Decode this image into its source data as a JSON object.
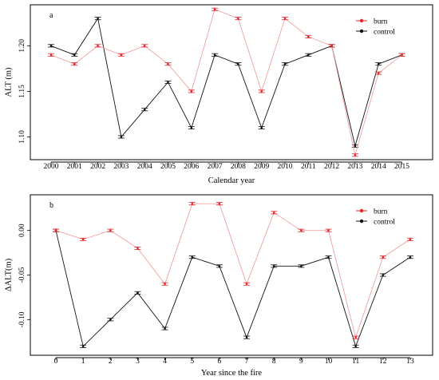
{
  "chart_data": [
    {
      "panel": "a",
      "type": "line",
      "xlabel": "Calendar year",
      "ylabel": "ALT (m)",
      "x": [
        "2000",
        "2001",
        "2002",
        "2003",
        "2004",
        "2005",
        "2006",
        "2007",
        "2008",
        "2009",
        "2010",
        "2011",
        "2012",
        "2013",
        "2014",
        "2015"
      ],
      "ylim": [
        1.075,
        1.245
      ],
      "yticks": [
        1.1,
        1.15,
        1.2
      ],
      "ytick_labels": [
        "1.10",
        "1.15",
        "1.20"
      ],
      "legend_position": "top-right",
      "series": [
        {
          "name": "burn",
          "color": "#e8242b",
          "values": [
            1.19,
            1.18,
            1.2,
            1.19,
            1.2,
            1.18,
            1.15,
            1.24,
            1.23,
            1.15,
            1.23,
            1.21,
            1.2,
            1.08,
            1.17,
            1.19
          ]
        },
        {
          "name": "control",
          "color": "#111111",
          "values": [
            1.2,
            1.19,
            1.23,
            1.1,
            1.13,
            1.16,
            1.11,
            1.19,
            1.18,
            1.11,
            1.18,
            1.19,
            1.2,
            1.09,
            1.18,
            1.19
          ]
        }
      ]
    },
    {
      "panel": "b",
      "type": "line",
      "xlabel": "Year since the fire",
      "ylabel": "ΔALT(m)",
      "x": [
        "0",
        "1",
        "2",
        "3",
        "4",
        "5",
        "6",
        "7",
        "8",
        "9",
        "10",
        "11",
        "12",
        "13"
      ],
      "ylim": [
        -0.14,
        0.04
      ],
      "yticks": [
        0.0,
        -0.05,
        -0.1
      ],
      "ytick_labels": [
        "0.00",
        "-0.05",
        "-0.10"
      ],
      "legend_position": "top-right",
      "series": [
        {
          "name": "burn",
          "color": "#e8242b",
          "values": [
            0.0,
            -0.01,
            0.0,
            -0.02,
            -0.06,
            0.03,
            0.03,
            -0.06,
            0.02,
            0.0,
            0.0,
            -0.12,
            -0.03,
            -0.01
          ]
        },
        {
          "name": "control",
          "color": "#111111",
          "values": [
            0.0,
            -0.13,
            -0.1,
            -0.07,
            -0.11,
            -0.03,
            -0.04,
            -0.12,
            -0.04,
            -0.04,
            -0.03,
            -0.13,
            -0.05,
            -0.03
          ]
        }
      ]
    }
  ]
}
